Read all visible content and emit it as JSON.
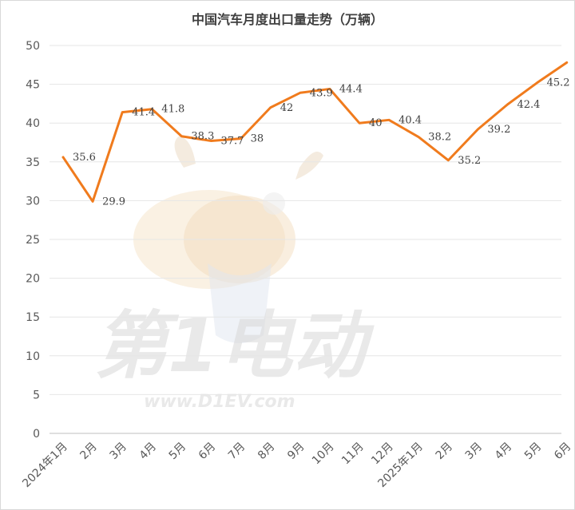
{
  "chart_data": {
    "type": "line",
    "title": "中国汽车月度出口量走势（万辆）",
    "categories": [
      "2024年1月",
      "2月",
      "3月",
      "4月",
      "5月",
      "6月",
      "7月",
      "8月",
      "9月",
      "10月",
      "11月",
      "12月",
      "2025年1月",
      "2月",
      "3月",
      "4月",
      "5月",
      "6月"
    ],
    "series": [
      {
        "values": [
          35.6,
          29.9,
          41.4,
          41.8,
          38.3,
          37.7,
          38,
          42,
          43.9,
          44.4,
          40,
          40.4,
          38.2,
          35.2,
          39.2,
          42.4,
          45.2,
          47.8
        ]
      }
    ],
    "ylim": [
      0,
      50
    ],
    "yticks": [
      0,
      5,
      10,
      15,
      20,
      25,
      30,
      35,
      40,
      45,
      50
    ],
    "xlabel": "",
    "ylabel": "",
    "grid": true,
    "line_color": "#f07b1d"
  },
  "watermark": {
    "text_main": "第1电动",
    "text_url": "www.D1EV.com"
  }
}
